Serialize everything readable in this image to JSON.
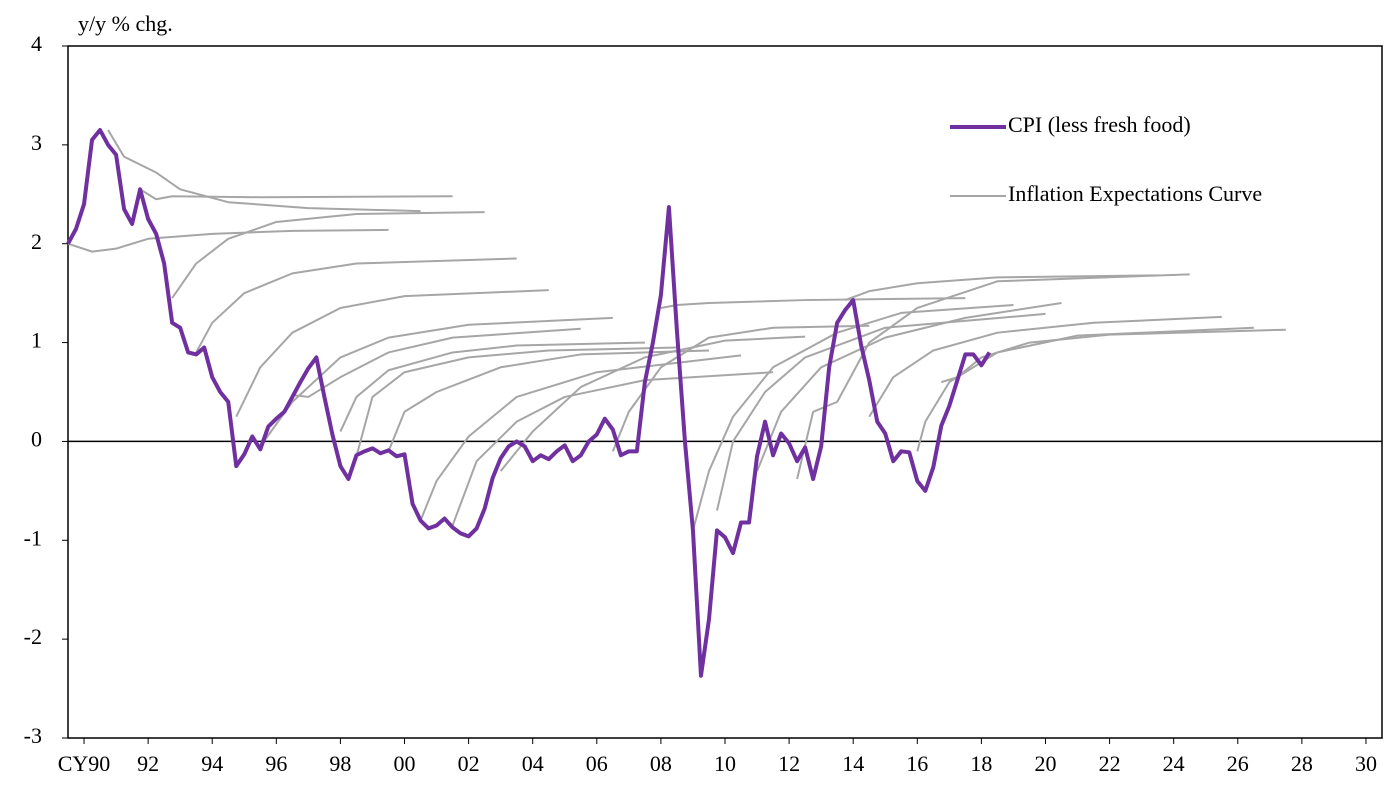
{
  "chart_data": {
    "type": "line",
    "y_label": "y/y % chg.",
    "xlim": [
      1990,
      2031
    ],
    "xticks": [
      {
        "value": 1990.5,
        "label": "CY90"
      },
      {
        "value": 1992.5,
        "label": "92"
      },
      {
        "value": 1994.5,
        "label": "94"
      },
      {
        "value": 1996.5,
        "label": "96"
      },
      {
        "value": 1998.5,
        "label": "98"
      },
      {
        "value": 2000.5,
        "label": "00"
      },
      {
        "value": 2002.5,
        "label": "02"
      },
      {
        "value": 2004.5,
        "label": "04"
      },
      {
        "value": 2006.5,
        "label": "06"
      },
      {
        "value": 2008.5,
        "label": "08"
      },
      {
        "value": 2010.5,
        "label": "10"
      },
      {
        "value": 2012.5,
        "label": "12"
      },
      {
        "value": 2014.5,
        "label": "14"
      },
      {
        "value": 2016.5,
        "label": "16"
      },
      {
        "value": 2018.5,
        "label": "18"
      },
      {
        "value": 2020.5,
        "label": "20"
      },
      {
        "value": 2022.5,
        "label": "22"
      },
      {
        "value": 2024.5,
        "label": "24"
      },
      {
        "value": 2026.5,
        "label": "26"
      },
      {
        "value": 2028.5,
        "label": "28"
      },
      {
        "value": 2030.5,
        "label": "30"
      }
    ],
    "ylim": [
      -3,
      4
    ],
    "yticks": [
      -3,
      -2,
      -1,
      0,
      1,
      2,
      3,
      4
    ],
    "legend": "upper right",
    "series": [
      {
        "name": "CPI (less fresh food)",
        "color": "#7030a0",
        "x": [
          1990,
          1990.25,
          1990.5,
          1990.75,
          1991,
          1991.25,
          1991.5,
          1991.75,
          1992,
          1992.25,
          1992.5,
          1992.75,
          1993,
          1993.25,
          1993.5,
          1993.75,
          1994,
          1994.25,
          1994.5,
          1994.75,
          1995,
          1995.25,
          1995.5,
          1995.75,
          1996,
          1996.25,
          1996.5,
          1996.75,
          1997,
          1997.25,
          1997.5,
          1997.75,
          1998,
          1998.25,
          1998.5,
          1998.75,
          1999,
          1999.25,
          1999.5,
          1999.75,
          2000,
          2000.25,
          2000.5,
          2000.75,
          2001,
          2001.25,
          2001.5,
          2001.75,
          2002,
          2002.25,
          2002.5,
          2002.75,
          2003,
          2003.25,
          2003.5,
          2003.75,
          2004,
          2004.25,
          2004.5,
          2004.75,
          2005,
          2005.25,
          2005.5,
          2005.75,
          2006,
          2006.25,
          2006.5,
          2006.75,
          2007,
          2007.25,
          2007.5,
          2007.75,
          2008,
          2008.25,
          2008.5,
          2008.75,
          2009,
          2009.25,
          2009.5,
          2009.75,
          2010,
          2010.25,
          2010.5,
          2010.75,
          2011,
          2011.25,
          2011.5,
          2011.75,
          2012,
          2012.25,
          2012.5,
          2012.75,
          2013,
          2013.25,
          2013.5,
          2013.75,
          2014,
          2014.25,
          2014.5,
          2014.75,
          2015,
          2015.25,
          2015.5,
          2015.75,
          2016,
          2016.25,
          2016.5,
          2016.75,
          2017,
          2017.25,
          2017.5,
          2017.75,
          2018,
          2018.25,
          2018.5,
          2018.75
        ],
        "values": [
          2.0,
          2.15,
          2.4,
          3.05,
          3.15,
          3.0,
          2.9,
          2.35,
          2.2,
          2.55,
          2.25,
          2.1,
          1.8,
          1.2,
          1.15,
          0.9,
          0.88,
          0.95,
          0.65,
          0.5,
          0.4,
          -0.25,
          -0.13,
          0.05,
          -0.08,
          0.15,
          0.23,
          0.3,
          0.45,
          0.6,
          0.74,
          0.85,
          0.45,
          0.07,
          -0.25,
          -0.38,
          -0.14,
          -0.1,
          -0.07,
          -0.12,
          -0.09,
          -0.15,
          -0.13,
          -0.63,
          -0.8,
          -0.88,
          -0.85,
          -0.78,
          -0.87,
          -0.93,
          -0.96,
          -0.88,
          -0.68,
          -0.37,
          -0.17,
          -0.05,
          0.0,
          -0.05,
          -0.2,
          -0.14,
          -0.18,
          -0.1,
          -0.04,
          -0.2,
          -0.14,
          0.0,
          0.07,
          0.23,
          0.12,
          -0.14,
          -0.1,
          -0.1,
          0.6,
          1.0,
          1.48,
          2.37,
          1.12,
          0.0,
          -0.9,
          -2.37,
          -1.8,
          -0.9,
          -0.97,
          -1.13,
          -0.82,
          -0.82,
          -0.15,
          0.2,
          -0.14,
          0.08,
          -0.02,
          -0.2,
          -0.06,
          -0.38,
          -0.05,
          0.75,
          1.2,
          1.33,
          1.43,
          0.97,
          0.62,
          0.2,
          0.08,
          -0.2,
          -0.1,
          -0.11,
          -0.4,
          -0.5,
          -0.26,
          0.16,
          0.36,
          0.62,
          0.88,
          0.88,
          0.77,
          0.9
        ]
      },
      {
        "name": "Inflation Expectations Curve",
        "color": "#a6a6a6",
        "curves": [
          {
            "x": [
              1990,
              1990.75,
              1991.5,
              1992.5,
              1994.5,
              1997,
              2000
            ],
            "values": [
              2.0,
              1.92,
              1.95,
              2.05,
              2.1,
              2.13,
              2.14
            ]
          },
          {
            "x": [
              1991.25,
              1991.75,
              1992.75,
              1993.5,
              1995,
              1997.5,
              2001
            ],
            "values": [
              3.15,
              2.88,
              2.72,
              2.55,
              2.42,
              2.36,
              2.33
            ]
          },
          {
            "x": [
              1992.25,
              1992.75,
              1993.25,
              1996,
              2002
            ],
            "values": [
              2.55,
              2.45,
              2.48,
              2.47,
              2.48
            ]
          },
          {
            "x": [
              1993.25,
              1994,
              1995,
              1996.5,
              1999,
              2003
            ],
            "values": [
              1.45,
              1.8,
              2.05,
              2.22,
              2.3,
              2.32
            ]
          },
          {
            "x": [
              1994,
              1994.5,
              1995.5,
              1997,
              1999,
              2004
            ],
            "values": [
              0.9,
              1.2,
              1.5,
              1.7,
              1.8,
              1.85
            ]
          },
          {
            "x": [
              1995.25,
              1996,
              1997,
              1998.5,
              2000.5,
              2005
            ],
            "values": [
              0.25,
              0.75,
              1.1,
              1.35,
              1.47,
              1.53
            ]
          },
          {
            "x": [
              1996,
              1997,
              1998.5,
              2000,
              2002.5,
              2007
            ],
            "values": [
              -0.05,
              0.4,
              0.85,
              1.05,
              1.18,
              1.25
            ]
          },
          {
            "x": [
              1997,
              1997.5,
              1998.5,
              2000,
              2002,
              2006
            ],
            "values": [
              0.47,
              0.45,
              0.65,
              0.9,
              1.05,
              1.14
            ]
          },
          {
            "x": [
              1998.5,
              1999,
              2000,
              2002,
              2004,
              2008
            ],
            "values": [
              0.1,
              0.45,
              0.72,
              0.9,
              0.97,
              1.0
            ]
          },
          {
            "x": [
              1999,
              1999.5,
              2000.5,
              2002.5,
              2005,
              2009
            ],
            "values": [
              -0.15,
              0.45,
              0.7,
              0.85,
              0.92,
              0.95
            ]
          },
          {
            "x": [
              2000,
              2000.5,
              2001.5,
              2003.5,
              2006,
              2010
            ],
            "values": [
              -0.1,
              0.3,
              0.5,
              0.75,
              0.88,
              0.92
            ]
          },
          {
            "x": [
              2001,
              2001.5,
              2002.5,
              2004,
              2006.5,
              2011
            ],
            "values": [
              -0.8,
              -0.4,
              0.05,
              0.45,
              0.7,
              0.87
            ]
          },
          {
            "x": [
              2002,
              2002.75,
              2004,
              2005.5,
              2008,
              2012
            ],
            "values": [
              -0.85,
              -0.2,
              0.2,
              0.45,
              0.62,
              0.7
            ]
          },
          {
            "x": [
              2003.5,
              2004.5,
              2006,
              2008,
              2010.5,
              2013
            ],
            "values": [
              -0.3,
              0.1,
              0.55,
              0.85,
              1.02,
              1.06
            ]
          },
          {
            "x": [
              2007,
              2007.5,
              2008.5,
              2010,
              2012,
              2015
            ],
            "values": [
              -0.1,
              0.3,
              0.75,
              1.05,
              1.15,
              1.17
            ]
          },
          {
            "x": [
              2008.5,
              2009,
              2010,
              2013,
              2018
            ],
            "values": [
              1.35,
              1.38,
              1.4,
              1.43,
              1.45
            ]
          },
          {
            "x": [
              2009.5,
              2010,
              2010.75,
              2012,
              2014,
              2016,
              2019.5
            ],
            "values": [
              -0.9,
              -0.3,
              0.25,
              0.75,
              1.1,
              1.3,
              1.38
            ]
          },
          {
            "x": [
              2010.25,
              2010.75,
              2011.75,
              2013,
              2015.5,
              2020.5
            ],
            "values": [
              -0.7,
              0.0,
              0.5,
              0.85,
              1.15,
              1.29
            ]
          },
          {
            "x": [
              2011.5,
              2012.25,
              2013.5,
              2015.5,
              2018,
              2021
            ],
            "values": [
              -0.3,
              0.3,
              0.75,
              1.05,
              1.25,
              1.4
            ]
          },
          {
            "x": [
              2012.75,
              2013.25,
              2014,
              2015,
              2016.5,
              2019,
              2025
            ],
            "values": [
              -0.38,
              0.3,
              0.4,
              1.0,
              1.35,
              1.62,
              1.69
            ]
          },
          {
            "x": [
              2014.25,
              2015,
              2016.5,
              2019,
              2024
            ],
            "values": [
              1.43,
              1.52,
              1.6,
              1.66,
              1.68
            ]
          },
          {
            "x": [
              2015,
              2015.75,
              2017,
              2019,
              2022,
              2026
            ],
            "values": [
              0.25,
              0.65,
              0.92,
              1.1,
              1.2,
              1.26
            ]
          },
          {
            "x": [
              2016.5,
              2016.75,
              2017.5,
              2019,
              2021.5,
              2027
            ],
            "values": [
              -0.1,
              0.2,
              0.6,
              0.9,
              1.07,
              1.15
            ]
          },
          {
            "x": [
              2017.25,
              2017.75,
              2018.5,
              2020,
              2022.5,
              2028
            ],
            "values": [
              0.6,
              0.65,
              0.85,
              1.0,
              1.08,
              1.13
            ]
          }
        ]
      }
    ]
  }
}
